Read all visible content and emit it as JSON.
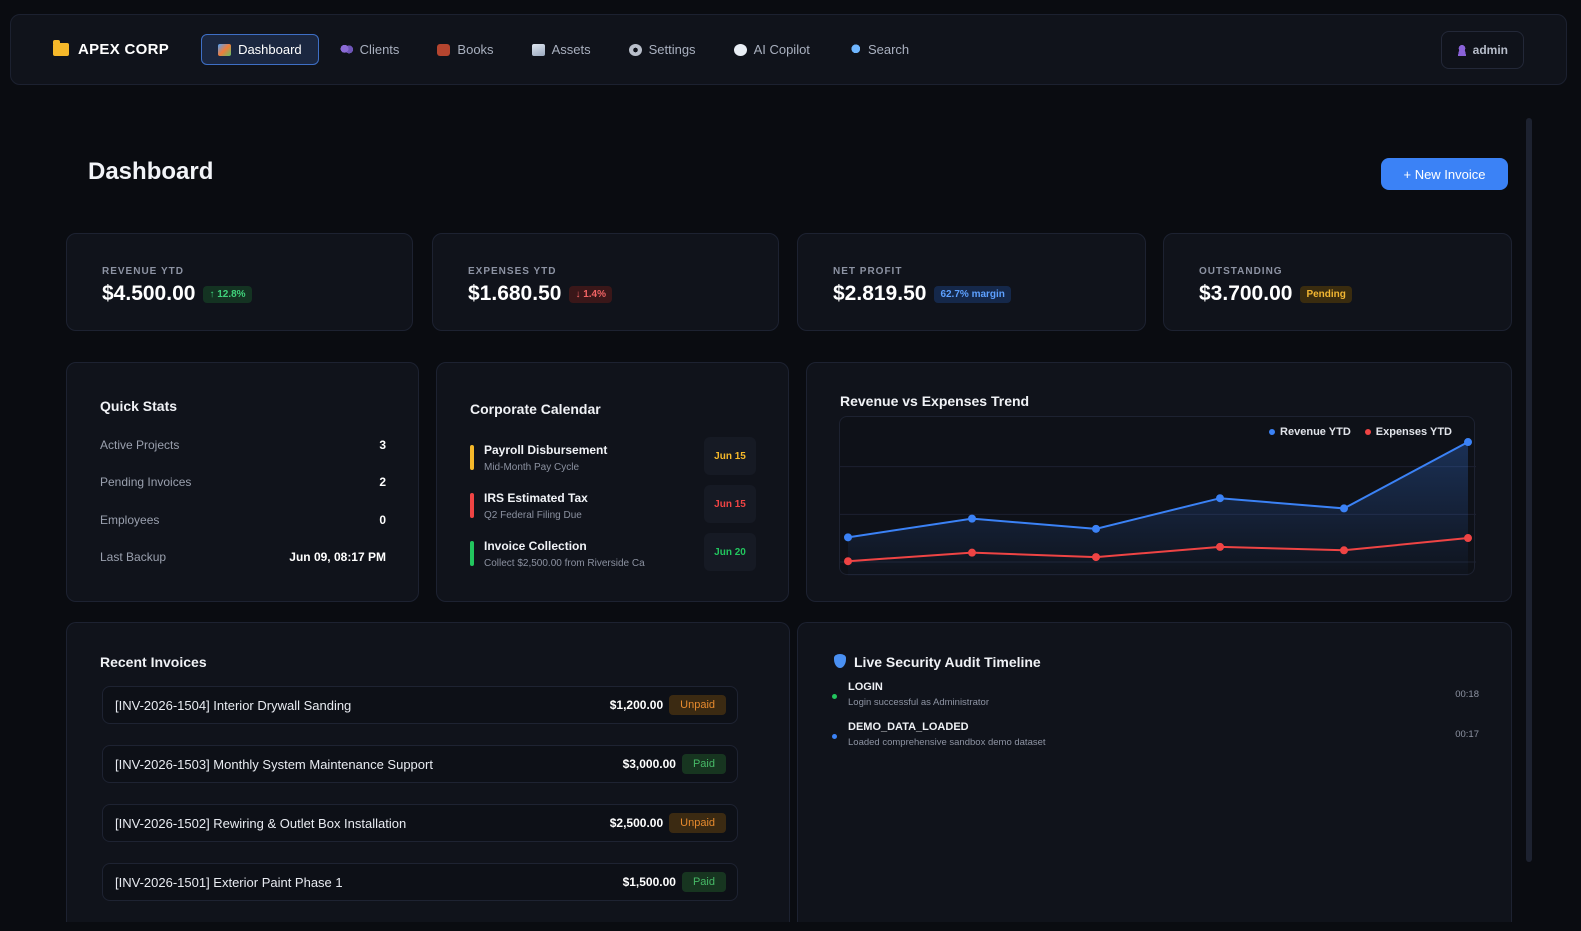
{
  "nav": {
    "brand": "APEX CORP",
    "items": [
      {
        "label": "Dashboard",
        "icon": "dashboard-icon"
      },
      {
        "label": "Clients",
        "icon": "users-icon"
      },
      {
        "label": "Books",
        "icon": "briefcase-icon"
      },
      {
        "label": "Assets",
        "icon": "chart-icon"
      },
      {
        "label": "Settings",
        "icon": "gear-icon"
      },
      {
        "label": "AI Copilot",
        "icon": "chat-icon"
      },
      {
        "label": "Search",
        "icon": "search-icon"
      }
    ],
    "user": "admin"
  },
  "header": {
    "title": "Dashboard",
    "new_invoice": "+ New Invoice"
  },
  "kpis": [
    {
      "label": "REVENUE YTD",
      "value": "$4.500.00",
      "badge": "↑ 12.8%"
    },
    {
      "label": "EXPENSES YTD",
      "value": "$1.680.50",
      "badge": "↓ 1.4%"
    },
    {
      "label": "NET PROFIT",
      "value": "$2.819.50",
      "badge": "62.7% margin"
    },
    {
      "label": "OUTSTANDING",
      "value": "$3.700.00",
      "badge": "Pending"
    }
  ],
  "quick_stats": {
    "title": "Quick Stats",
    "rows": [
      {
        "label": "Active Projects",
        "value": "3"
      },
      {
        "label": "Pending Invoices",
        "value": "2"
      },
      {
        "label": "Employees",
        "value": "0"
      },
      {
        "label": "Last Backup",
        "value": "Jun 09, 08:17 PM"
      }
    ]
  },
  "calendar": {
    "title": "Corporate Calendar",
    "events": [
      {
        "title": "Payroll Disbursement",
        "sub": "Mid-Month Pay Cycle",
        "date": "Jun 15",
        "color": "#f5b82a"
      },
      {
        "title": "IRS Estimated Tax",
        "sub": "Q2 Federal Filing Due",
        "date": "Jun 15",
        "color": "#ef4444"
      },
      {
        "title": "Invoice Collection",
        "sub": "Collect $2,500.00 from Riverside Ca",
        "date": "Jun 20",
        "color": "#22c55e"
      }
    ]
  },
  "chart_data": {
    "type": "line",
    "title": "Revenue vs Expenses Trend",
    "x": [
      1,
      2,
      3,
      4,
      5,
      6
    ],
    "series": [
      {
        "name": "Revenue YTD",
        "color": "#3b82f6",
        "values": [
          1700,
          2250,
          1950,
          2850,
          2550,
          4500
        ]
      },
      {
        "name": "Expenses YTD",
        "color": "#ef4444",
        "values": [
          1000,
          1250,
          1120,
          1420,
          1320,
          1680.5
        ]
      }
    ],
    "ylim": [
      800,
      5000
    ],
    "grid": true,
    "legend": "top-right"
  },
  "invoices": {
    "title": "Recent Invoices",
    "rows": [
      {
        "title": "[INV-2026-1504] Interior Drywall Sanding",
        "amount": "$1,200.00",
        "status": "Unpaid"
      },
      {
        "title": "[INV-2026-1503] Monthly System Maintenance Support",
        "amount": "$3,000.00",
        "status": "Paid"
      },
      {
        "title": "[INV-2026-1502] Rewiring & Outlet Box Installation",
        "amount": "$2,500.00",
        "status": "Unpaid"
      },
      {
        "title": "[INV-2026-1501] Exterior Paint Phase 1",
        "amount": "$1,500.00",
        "status": "Paid"
      }
    ]
  },
  "audit": {
    "title": "Live Security Audit Timeline",
    "entries": [
      {
        "event": "LOGIN",
        "detail": "Login successful as Administrator",
        "time": "00:18",
        "color": "#22c55e"
      },
      {
        "event": "DEMO_DATA_LOADED",
        "detail": "Loaded comprehensive sandbox demo dataset",
        "time": "00:17",
        "color": "#3b82f6"
      }
    ]
  }
}
